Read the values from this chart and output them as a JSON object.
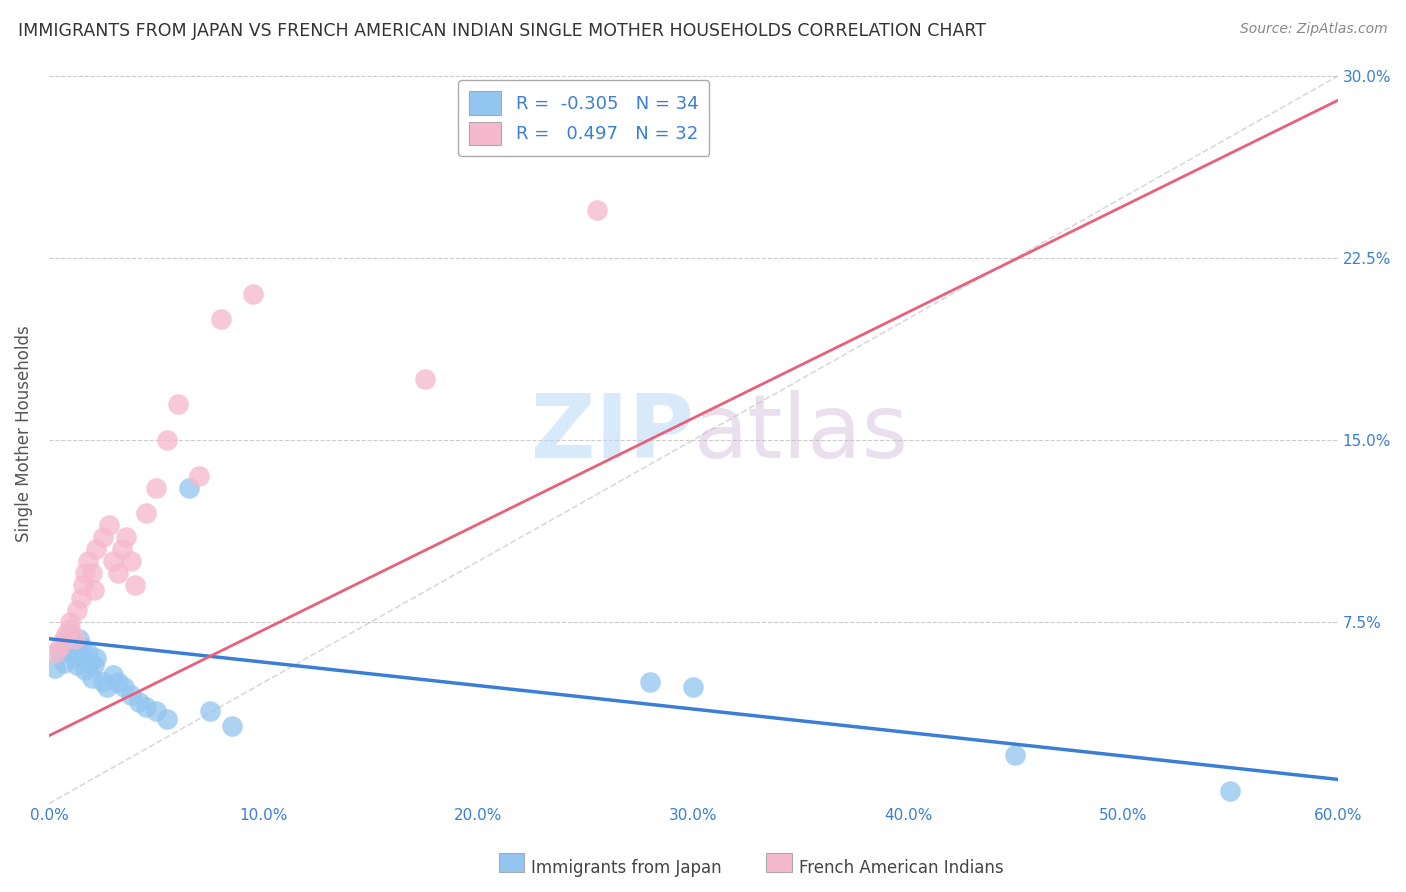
{
  "title": "IMMIGRANTS FROM JAPAN VS FRENCH AMERICAN INDIAN SINGLE MOTHER HOUSEHOLDS CORRELATION CHART",
  "source": "Source: ZipAtlas.com",
  "ylabel": "Single Mother Households",
  "legend_label_1": "Immigrants from Japan",
  "legend_label_2": "French American Indians",
  "R1": -0.305,
  "N1": 34,
  "R2": 0.497,
  "N2": 32,
  "color1": "#92c5f0",
  "color2": "#f5b8cc",
  "line_color1": "#3a7fd5",
  "line_color2": "#e8607a",
  "trendline_dashed_color": "#c0c0c0",
  "xlim": [
    0.0,
    0.6
  ],
  "ylim": [
    0.0,
    0.305
  ],
  "yticks": [
    0.0,
    0.075,
    0.15,
    0.225,
    0.3
  ],
  "ytick_labels": [
    "",
    "7.5%",
    "15.0%",
    "22.5%",
    "30.0%"
  ],
  "xticks": [
    0.0,
    0.1,
    0.2,
    0.3,
    0.4,
    0.5,
    0.6
  ],
  "xtick_labels": [
    "0.0%",
    "10.0%",
    "20.0%",
    "30.0%",
    "40.0%",
    "50.0%",
    "60.0%"
  ],
  "bg_color": "#ffffff",
  "grid_color": "#cccccc",
  "watermark_zip": "ZIP",
  "watermark_atlas": "atlas",
  "title_color": "#333333",
  "axis_label_color": "#555555",
  "tick_color": "#3a7fd5",
  "value_color": "#3a7fd5",
  "label_color": "#333333",
  "scatter1_x": [
    0.003,
    0.005,
    0.007,
    0.008,
    0.01,
    0.01,
    0.012,
    0.013,
    0.014,
    0.015,
    0.016,
    0.017,
    0.018,
    0.019,
    0.02,
    0.021,
    0.022,
    0.025,
    0.027,
    0.03,
    0.032,
    0.035,
    0.038,
    0.042,
    0.045,
    0.05,
    0.055,
    0.065,
    0.075,
    0.085,
    0.28,
    0.3,
    0.45,
    0.55
  ],
  "scatter1_y": [
    0.056,
    0.062,
    0.058,
    0.065,
    0.063,
    0.07,
    0.06,
    0.057,
    0.068,
    0.065,
    0.06,
    0.055,
    0.062,
    0.058,
    0.052,
    0.057,
    0.06,
    0.05,
    0.048,
    0.053,
    0.05,
    0.048,
    0.045,
    0.042,
    0.04,
    0.038,
    0.035,
    0.13,
    0.038,
    0.032,
    0.05,
    0.048,
    0.02,
    0.005
  ],
  "scatter2_x": [
    0.003,
    0.005,
    0.007,
    0.008,
    0.01,
    0.01,
    0.012,
    0.013,
    0.015,
    0.016,
    0.017,
    0.018,
    0.02,
    0.021,
    0.022,
    0.025,
    0.028,
    0.03,
    0.032,
    0.034,
    0.036,
    0.038,
    0.04,
    0.045,
    0.05,
    0.055,
    0.06,
    0.07,
    0.08,
    0.095,
    0.175,
    0.255
  ],
  "scatter2_y": [
    0.062,
    0.065,
    0.068,
    0.07,
    0.072,
    0.075,
    0.068,
    0.08,
    0.085,
    0.09,
    0.095,
    0.1,
    0.095,
    0.088,
    0.105,
    0.11,
    0.115,
    0.1,
    0.095,
    0.105,
    0.11,
    0.1,
    0.09,
    0.12,
    0.13,
    0.15,
    0.165,
    0.135,
    0.2,
    0.21,
    0.175,
    0.245
  ],
  "blue_trendline": [
    [
      0.0,
      0.6
    ],
    [
      0.068,
      0.01
    ]
  ],
  "pink_trendline": [
    [
      0.0,
      0.6
    ],
    [
      0.028,
      0.29
    ]
  ],
  "dashed_trendline": [
    [
      0.0,
      0.6
    ],
    [
      0.0,
      0.3
    ]
  ]
}
